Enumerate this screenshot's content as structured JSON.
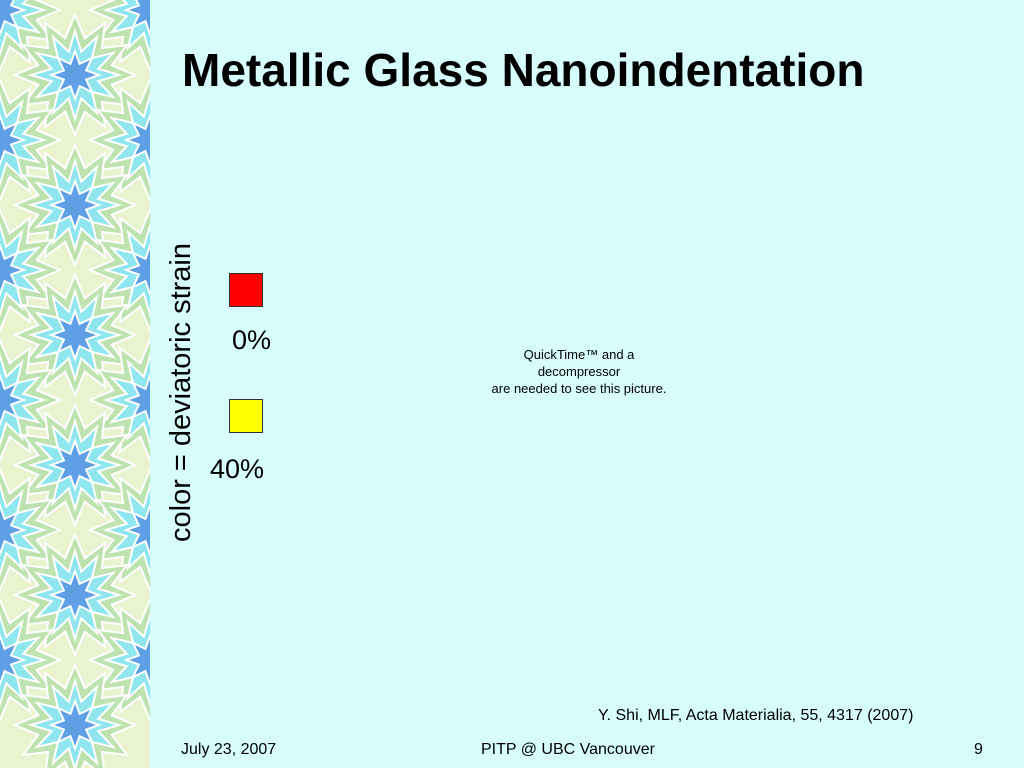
{
  "slide": {
    "title": "Metallic Glass Nanoindentation",
    "axis_label": "color = deviatoric strain",
    "legend": [
      {
        "label": "0%",
        "color": "#ff0000"
      },
      {
        "label": "40%",
        "color": "#ffff00"
      }
    ],
    "quicktime_notice": {
      "line1": "QuickTime™ and a",
      "line2": "decompressor",
      "line3": "are needed to see this picture."
    },
    "citation": "Y. Shi, MLF, Acta Materialia, 55, 4317 (2007)"
  },
  "footer": {
    "date": "July 23, 2007",
    "venue": "PITP @ UBC Vancouver",
    "page_number": "9"
  },
  "theme": {
    "background": "#d6fdfc",
    "pattern_light": "#e9f3cf",
    "pattern_cyan": "#8fe6ef",
    "pattern_blue": "#5f9fe6",
    "pattern_green": "#bfe3b0"
  }
}
